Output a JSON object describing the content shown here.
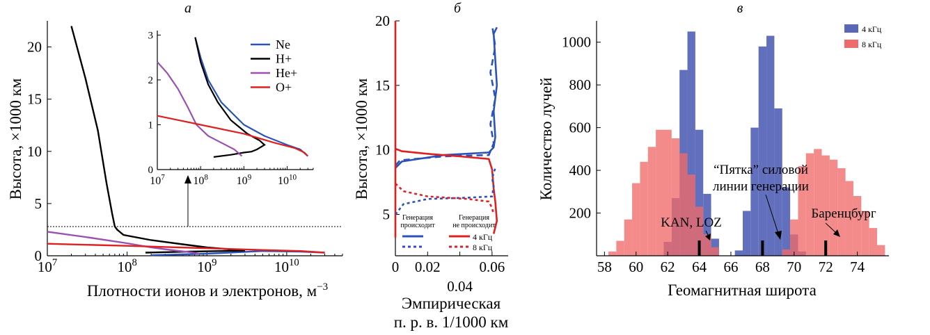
{
  "chart_data": [
    {
      "type": "line",
      "panel_label": "а",
      "xlabel": "Плотности ионов и электронов, м",
      "xlabel_exp": "−3",
      "ylabel": "Высота, ×1000 км",
      "xscale": "log",
      "xlim": [
        10000000.0,
        50000000000.0
      ],
      "ylim": [
        0,
        22.5
      ],
      "x_ticks": [
        {
          "value": 10000000.0,
          "base": "10",
          "exp": "7"
        },
        {
          "value": 100000000.0,
          "base": "10",
          "exp": "8"
        },
        {
          "value": 1000000000.0,
          "base": "10",
          "exp": "9"
        },
        {
          "value": 10000000000.0,
          "base": "10",
          "exp": "10"
        }
      ],
      "y_ticks": [
        "0",
        "5",
        "10",
        "15",
        "20"
      ],
      "reference_line": {
        "y": 2.8,
        "style": "dotted"
      },
      "series": [
        {
          "name": "Ne",
          "color": "#2a52b8",
          "points": [
            [
              200000000.0,
              0.05
            ],
            [
              1000000000.0,
              0.2
            ],
            [
              5000000000.0,
              0.45
            ],
            [
              15000000000.0,
              0.4
            ],
            [
              30000000000.0,
              0.3
            ]
          ]
        },
        {
          "name": "H+",
          "color": "#000000",
          "points": [
            [
              170000000.0,
              0.3
            ],
            [
              600000000.0,
              0.4
            ],
            [
              1500000000.0,
              0.45
            ],
            [
              3000000000.0,
              0.5
            ],
            [
              1000000000.0,
              0.8
            ],
            [
              500000000.0,
              1.1
            ],
            [
              200000000.0,
              1.5
            ],
            [
              90000000.0,
              2.0
            ],
            [
              75000000.0,
              2.5
            ],
            [
              70000000.0,
              2.8
            ],
            [
              65000000.0,
              4
            ],
            [
              55000000.0,
              7
            ],
            [
              43000000.0,
              12
            ],
            [
              30000000.0,
              17
            ],
            [
              20000000.0,
              22
            ]
          ]
        },
        {
          "name": "He+",
          "color": "#9a4fb3",
          "points": [
            [
              800000000.0,
              0.2
            ],
            [
              600000000.0,
              0.35
            ],
            [
              400000000.0,
              0.5
            ],
            [
              200000000.0,
              0.8
            ],
            [
              100000000.0,
              1.2
            ],
            [
              30000000.0,
              1.8
            ],
            [
              10000000.0,
              2.3
            ]
          ]
        },
        {
          "name": "O+",
          "color": "#e02020",
          "points": [
            [
              10000000.0,
              1.15
            ],
            [
              100000000.0,
              0.95
            ],
            [
              1000000000.0,
              0.72
            ],
            [
              5000000000.0,
              0.55
            ],
            [
              15000000000.0,
              0.45
            ],
            [
              30000000000.0,
              0.3
            ]
          ]
        }
      ],
      "inset": {
        "xlim": [
          10000000.0,
          40000000000.0
        ],
        "ylim": [
          0,
          3.1
        ],
        "x_ticks": [
          {
            "value": 10000000.0,
            "base": "10",
            "exp": "7"
          },
          {
            "value": 100000000.0,
            "base": "10",
            "exp": "8"
          },
          {
            "value": 1000000000.0,
            "base": "10",
            "exp": "9"
          },
          {
            "value": 10000000000.0,
            "base": "10",
            "exp": "10"
          }
        ],
        "y_ticks": [
          "0",
          "1",
          "2",
          "3"
        ],
        "series": [
          {
            "name": "Ne",
            "color": "#2a52b8",
            "points": [
              [
                75000000.0,
                2.95
              ],
              [
                100000000.0,
                2.5
              ],
              [
                150000000.0,
                2.0
              ],
              [
                300000000.0,
                1.5
              ],
              [
                1000000000.0,
                1.0
              ],
              [
                3000000000.0,
                0.75
              ],
              [
                10000000000.0,
                0.55
              ],
              [
                20000000000.0,
                0.45
              ],
              [
                30000000000.0,
                0.3
              ]
            ]
          },
          {
            "name": "H+",
            "color": "#000000",
            "points": [
              [
                75000000.0,
                2.95
              ],
              [
                100000000.0,
                2.4
              ],
              [
                150000000.0,
                1.9
              ],
              [
                250000000.0,
                1.5
              ],
              [
                500000000.0,
                1.1
              ],
              [
                1200000000.0,
                0.8
              ],
              [
                2300000000.0,
                0.65
              ],
              [
                3000000000.0,
                0.55
              ],
              [
                2000000000.0,
                0.45
              ],
              [
                1500000000.0,
                0.4
              ],
              [
                1000000000.0,
                0.38
              ],
              [
                500000000.0,
                0.33
              ],
              [
                200000000.0,
                0.28
              ]
            ]
          },
          {
            "name": "He+",
            "color": "#9a4fb3",
            "points": [
              [
                10000000.0,
                2.4
              ],
              [
                17000000.0,
                2.15
              ],
              [
                30000000.0,
                1.8
              ],
              [
                50000000.0,
                1.4
              ],
              [
                80000000.0,
                1.0
              ],
              [
                150000000.0,
                0.75
              ],
              [
                300000000.0,
                0.6
              ],
              [
                600000000.0,
                0.45
              ],
              [
                900000000.0,
                0.3
              ]
            ]
          },
          {
            "name": "O+",
            "color": "#e02020",
            "points": [
              [
                10000000.0,
                1.2
              ],
              [
                100000000.0,
                1.0
              ],
              [
                1000000000.0,
                0.8
              ],
              [
                5000000000.0,
                0.6
              ],
              [
                15000000000.0,
                0.48
              ],
              [
                25000000000.0,
                0.38
              ],
              [
                30000000000.0,
                0.3
              ]
            ]
          }
        ]
      },
      "legend": {
        "placement": "top-right of inset",
        "entries": [
          "Ne",
          "H+",
          "He+",
          "O+"
        ]
      }
    },
    {
      "type": "line",
      "panel_label": "б",
      "xlabel": "Эмпирическая",
      "xlabel_line2": "п. р. в. 1/1000 км",
      "ylabel": "Высота, ×1000 км",
      "xlim": [
        0,
        0.07
      ],
      "ylim": [
        1.8,
        20
      ],
      "x_ticks": [
        "0",
        "0.02",
        "0.04",
        "0.06"
      ],
      "y_ticks": [
        "5",
        "10",
        "15",
        "20"
      ],
      "series": [
        {
          "name": "4 кГц",
          "group": "Генерация происходит",
          "color": "#2a52b8",
          "style": "solid",
          "points": [
            [
              0.0,
              8.6
            ],
            [
              0.004,
              9.1
            ],
            [
              0.03,
              9.6
            ],
            [
              0.058,
              9.8
            ],
            [
              0.061,
              10.2
            ],
            [
              0.062,
              11
            ],
            [
              0.061,
              13
            ],
            [
              0.063,
              15
            ],
            [
              0.062,
              17
            ],
            [
              0.061,
              19
            ],
            [
              0.063,
              19.5
            ]
          ]
        },
        {
          "name": "4 кГц",
          "group": "Генерация не происходит",
          "color": "#2a52b8",
          "style": "dashed",
          "points": [
            [
              0.0,
              8.8
            ],
            [
              0.003,
              9.2
            ],
            [
              0.03,
              9.5
            ],
            [
              0.058,
              9.6
            ],
            [
              0.061,
              10.5
            ],
            [
              0.059,
              12
            ],
            [
              0.062,
              14
            ],
            [
              0.059,
              16
            ],
            [
              0.062,
              18
            ],
            [
              0.06,
              19.7
            ]
          ]
        },
        {
          "name": "4 кГц",
          "group": "Генерация не происходит",
          "color": "#e02020",
          "style": "solid",
          "points": [
            [
              0.0,
              10.1
            ],
            [
              0.004,
              9.9
            ],
            [
              0.02,
              9.7
            ],
            [
              0.04,
              9.5
            ],
            [
              0.058,
              9.3
            ],
            [
              0.06,
              8.5
            ],
            [
              0.061,
              7.0
            ],
            [
              0.062,
              6.0
            ],
            [
              0.063,
              4.5
            ],
            [
              0.061,
              3.5
            ]
          ]
        },
        {
          "name": "4 кГц",
          "group": "Генерация происходит",
          "color": "#e02020",
          "style": "solid",
          "points": [
            [
              0.0,
              3.2
            ],
            [
              0.0,
              20
            ]
          ]
        },
        {
          "name": "8 кГц",
          "group": "Генерация происходит",
          "color": "#2a52b8",
          "style": "dotted",
          "points": [
            [
              0.0,
              5.0
            ],
            [
              0.005,
              5.8
            ],
            [
              0.02,
              6.2
            ],
            [
              0.045,
              6.3
            ],
            [
              0.06,
              6.4
            ],
            [
              0.061,
              7.2
            ],
            [
              0.06,
              7.8
            ],
            [
              0.062,
              8.6
            ]
          ]
        },
        {
          "name": "8 кГц",
          "group": "Генерация не происходит",
          "color": "#e02020",
          "style": "dotted",
          "points": [
            [
              0.0,
              7.4
            ],
            [
              0.005,
              6.8
            ],
            [
              0.02,
              6.4
            ],
            [
              0.045,
              6.2
            ],
            [
              0.058,
              6.0
            ],
            [
              0.06,
              5.5
            ],
            [
              0.061,
              5.0
            ]
          ]
        }
      ],
      "legend": {
        "placement": "bottom",
        "group_labels": [
          "Генерация\nпроисходит",
          "Генерация\nне происходит"
        ],
        "entries": [
          "4 кГц",
          "8 кГц"
        ]
      }
    },
    {
      "type": "bar",
      "panel_label": "в",
      "xlabel": "Геомагнитная широта",
      "ylabel": "Количество лучей",
      "xlim": [
        57.5,
        76
      ],
      "ylim": [
        0,
        1100
      ],
      "x_ticks": [
        "58",
        "60",
        "62",
        "64",
        "66",
        "68",
        "70",
        "72",
        "74"
      ],
      "y_ticks": [
        "200",
        "400",
        "600",
        "800",
        "1000"
      ],
      "bin_width": 0.5,
      "series": [
        {
          "name": "4 кГц",
          "color": "#5a67b8",
          "bins": [
            [
              62.0,
              65
            ],
            [
              62.5,
              270
            ],
            [
              63.0,
              870
            ],
            [
              63.5,
              1050
            ],
            [
              64.0,
              590
            ],
            [
              64.5,
              290
            ],
            [
              65.0,
              80
            ],
            [
              66.5,
              25
            ],
            [
              67.0,
              210
            ],
            [
              67.5,
              600
            ],
            [
              68.0,
              980
            ],
            [
              68.5,
              1030
            ],
            [
              69.0,
              690
            ],
            [
              69.5,
              320
            ],
            [
              70.0,
              100
            ],
            [
              70.5,
              20
            ]
          ]
        },
        {
          "name": "8 кГц",
          "color": "#ef6a6a",
          "bins": [
            [
              58.5,
              20
            ],
            [
              59.0,
              70
            ],
            [
              59.5,
              170
            ],
            [
              60.0,
              340
            ],
            [
              60.5,
              440
            ],
            [
              61.0,
              510
            ],
            [
              61.5,
              590
            ],
            [
              62.0,
              590
            ],
            [
              62.5,
              550
            ],
            [
              63.0,
              480
            ],
            [
              63.5,
              380
            ],
            [
              64.0,
              230
            ],
            [
              64.5,
              100
            ],
            [
              65.0,
              40
            ],
            [
              69.5,
              30
            ],
            [
              70.0,
              170
            ],
            [
              70.5,
              420
            ],
            [
              71.0,
              480
            ],
            [
              71.5,
              500
            ],
            [
              72.0,
              470
            ],
            [
              72.5,
              450
            ],
            [
              73.0,
              410
            ],
            [
              73.5,
              350
            ],
            [
              74.0,
              280
            ],
            [
              74.5,
              210
            ],
            [
              75.0,
              130
            ],
            [
              75.5,
              50
            ]
          ]
        }
      ],
      "markers": [
        {
          "x": 64.0,
          "label": "KAN, LOZ"
        },
        {
          "x": 68.0,
          "label": "“Пятка” силовой\nлинии генерации"
        },
        {
          "x": 72.0,
          "label": "Баренцбург"
        }
      ],
      "legend": {
        "placement": "top-right",
        "entries": [
          "4 кГц",
          "8 кГц"
        ]
      }
    }
  ]
}
